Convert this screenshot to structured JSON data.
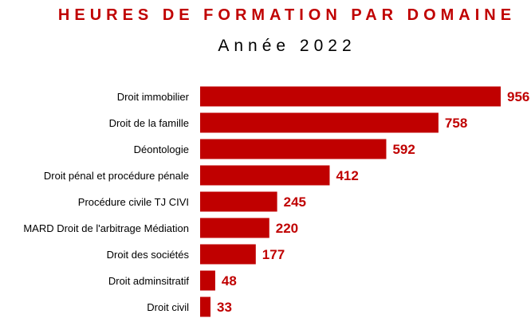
{
  "chart_data": {
    "type": "bar",
    "orientation": "horizontal",
    "title": "HEURES DE FORMATION PAR DOMAINE",
    "subtitle": "Année 2022",
    "categories": [
      "Droit immobilier",
      "Droit de la famille",
      "Déontologie",
      "Droit pénal et procédure pénale",
      "Procédure civile TJ CIVI",
      "MARD Droit de l'arbitrage Médiation",
      "Droit des sociétés",
      "Droit adminsitratif",
      "Droit civil"
    ],
    "values": [
      956,
      758,
      592,
      412,
      245,
      220,
      177,
      48,
      33
    ],
    "xlim": [
      0,
      956
    ],
    "grid": false,
    "legend": "none",
    "colors": {
      "bar": "#c00000",
      "title": "#c00000",
      "value_label": "#c00000"
    }
  }
}
